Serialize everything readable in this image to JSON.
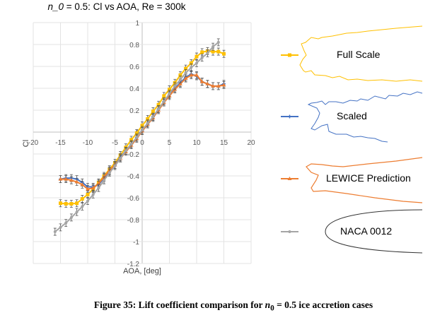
{
  "chart_data": {
    "type": "line",
    "title": "n_0 = 0.5:  Cl vs AOA, Re = 300k",
    "xlabel": "AOA, [deg]",
    "ylabel": "Cl",
    "xlim": [
      -20,
      20
    ],
    "ylim": [
      -1.2,
      1
    ],
    "xticks": [
      -20,
      -15,
      -10,
      -5,
      0,
      5,
      10,
      15,
      20
    ],
    "yticks": [
      -1.2,
      -1,
      -0.8,
      -0.6,
      -0.4,
      -0.2,
      0,
      0.2,
      0.4,
      0.6,
      0.8,
      1
    ],
    "xtick_labels": [
      "-20",
      "-15",
      "-10",
      "-5",
      "0",
      "5",
      "10",
      "15",
      "20"
    ],
    "ytick_labels": [
      "-1.2",
      "-1",
      "-0.8",
      "-0.6",
      "-0.4",
      "-0.2",
      "0",
      "0.2",
      "0.4",
      "0.6",
      "0.8",
      "1"
    ],
    "grid": true,
    "error_bars": true,
    "legend_position": "right",
    "series": [
      {
        "name": "Full Scale",
        "color": "#FFC000",
        "marker": "square",
        "x": [
          -15,
          -14,
          -13,
          -12,
          -11,
          -10,
          -9,
          -8,
          -7,
          -6,
          -5,
          -4,
          -3,
          -2,
          -1,
          0,
          1,
          2,
          3,
          4,
          5,
          6,
          7,
          8,
          9,
          10,
          11,
          12,
          13,
          14,
          15
        ],
        "y": [
          -0.65,
          -0.655,
          -0.655,
          -0.65,
          -0.61,
          -0.57,
          -0.52,
          -0.46,
          -0.4,
          -0.34,
          -0.28,
          -0.21,
          -0.14,
          -0.07,
          -0.01,
          0.06,
          0.12,
          0.19,
          0.25,
          0.33,
          0.39,
          0.45,
          0.52,
          0.58,
          0.63,
          0.69,
          0.73,
          0.74,
          0.735,
          0.735,
          0.715
        ]
      },
      {
        "name": "Scaled",
        "color": "#4472C4",
        "marker": "plus",
        "x": [
          -15,
          -14,
          -13,
          -12,
          -11,
          -10,
          -9,
          -8,
          -7,
          -6,
          -5,
          -4,
          -3,
          -2,
          -1,
          0,
          1,
          2,
          3,
          4,
          5,
          6,
          7,
          8,
          9,
          10,
          11,
          12,
          13,
          14,
          15
        ],
        "y": [
          -0.43,
          -0.42,
          -0.42,
          -0.43,
          -0.46,
          -0.5,
          -0.5,
          -0.48,
          -0.42,
          -0.36,
          -0.3,
          -0.23,
          -0.17,
          -0.11,
          -0.05,
          0.01,
          0.07,
          0.14,
          0.21,
          0.28,
          0.34,
          0.4,
          0.45,
          0.5,
          0.53,
          0.51,
          0.46,
          0.44,
          0.42,
          0.42,
          0.44
        ]
      },
      {
        "name": "LEWICE Prediction",
        "color": "#ED7D31",
        "marker": "triangle",
        "x": [
          -15,
          -14,
          -13,
          -12,
          -11,
          -10,
          -9,
          -8,
          -7,
          -6,
          -5,
          -4,
          -3,
          -2,
          -1,
          0,
          1,
          2,
          3,
          4,
          5,
          6,
          7,
          8,
          9,
          10,
          11,
          12,
          13,
          14,
          15
        ],
        "y": [
          -0.43,
          -0.43,
          -0.44,
          -0.455,
          -0.48,
          -0.52,
          -0.51,
          -0.47,
          -0.41,
          -0.35,
          -0.3,
          -0.24,
          -0.18,
          -0.12,
          -0.06,
          0.01,
          0.07,
          0.13,
          0.2,
          0.27,
          0.33,
          0.39,
          0.44,
          0.49,
          0.52,
          0.52,
          0.46,
          0.44,
          0.42,
          0.42,
          0.43
        ]
      },
      {
        "name": "NACA 0012",
        "color": "#A5A5A5",
        "marker": "circle",
        "x": [
          -16,
          -15,
          -14,
          -13,
          -12,
          -11,
          -10,
          -9,
          -8,
          -7,
          -6,
          -5,
          -4,
          -3,
          -2,
          -1,
          0,
          1,
          2,
          3,
          4,
          5,
          6,
          7,
          8,
          9,
          10,
          11,
          12,
          13,
          14
        ],
        "y": [
          -0.91,
          -0.87,
          -0.83,
          -0.78,
          -0.73,
          -0.68,
          -0.63,
          -0.57,
          -0.51,
          -0.44,
          -0.37,
          -0.31,
          -0.24,
          -0.17,
          -0.11,
          -0.05,
          0.02,
          0.08,
          0.14,
          0.21,
          0.28,
          0.35,
          0.42,
          0.48,
          0.54,
          0.59,
          0.63,
          0.68,
          0.72,
          0.78,
          0.82
        ]
      }
    ]
  },
  "caption": {
    "prefix": "Figure 35: Lift coefficient comparison for ",
    "var": "n",
    "sub": "0",
    "suffix": " = 0.5 ice accretion cases"
  },
  "title_parts": {
    "var": "n_0",
    "rest": " = 0.5:  Cl vs AOA, Re = 300k"
  }
}
